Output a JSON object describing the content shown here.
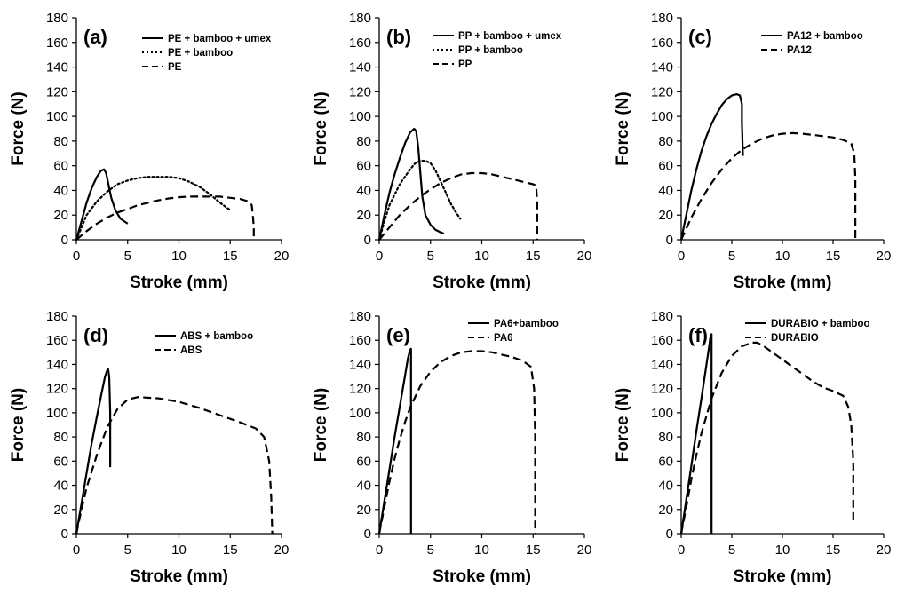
{
  "chart_data": [
    {
      "type": "line",
      "panel": "(a)",
      "xlabel": "Stroke (mm)",
      "ylabel": "Force (N)",
      "xlim": [
        0,
        20
      ],
      "ylim": [
        0,
        180
      ],
      "xticks": [
        0,
        5,
        10,
        15,
        20
      ],
      "yticks": [
        0,
        20,
        40,
        60,
        80,
        100,
        120,
        140,
        160,
        180
      ],
      "grid": false,
      "legend_position": "top-right",
      "series": [
        {
          "name": "PE + bamboo + umex",
          "style": "solid",
          "points": [
            [
              0,
              0
            ],
            [
              0.5,
              15
            ],
            [
              1,
              30
            ],
            [
              1.5,
              42
            ],
            [
              2,
              51
            ],
            [
              2.4,
              56
            ],
            [
              2.7,
              57
            ],
            [
              2.9,
              54
            ],
            [
              3.1,
              46
            ],
            [
              3.4,
              34
            ],
            [
              3.8,
              24
            ],
            [
              4.3,
              17
            ],
            [
              5,
              13
            ]
          ]
        },
        {
          "name": "PE + bamboo",
          "style": "dotted",
          "points": [
            [
              0,
              0
            ],
            [
              0.5,
              10
            ],
            [
              1,
              20
            ],
            [
              2,
              31
            ],
            [
              3,
              39
            ],
            [
              4,
              45
            ],
            [
              5,
              48
            ],
            [
              6,
              50
            ],
            [
              7,
              51
            ],
            [
              8,
              51
            ],
            [
              9,
              51
            ],
            [
              10,
              50
            ],
            [
              11,
              47
            ],
            [
              12,
              43
            ],
            [
              13,
              37
            ],
            [
              14,
              30
            ],
            [
              15,
              24
            ]
          ]
        },
        {
          "name": "PE",
          "style": "dashed",
          "points": [
            [
              0,
              0
            ],
            [
              1,
              7
            ],
            [
              2,
              13
            ],
            [
              3,
              18
            ],
            [
              4,
              22
            ],
            [
              5,
              25
            ],
            [
              6,
              28
            ],
            [
              7,
              30
            ],
            [
              8,
              32
            ],
            [
              9,
              33.5
            ],
            [
              10,
              34.5
            ],
            [
              11,
              35
            ],
            [
              12,
              35
            ],
            [
              13,
              35
            ],
            [
              14,
              35
            ],
            [
              15,
              34
            ],
            [
              16,
              33
            ],
            [
              16.8,
              31
            ],
            [
              17.1,
              28
            ],
            [
              17.2,
              20
            ],
            [
              17.3,
              10
            ],
            [
              17.3,
              0
            ]
          ]
        }
      ]
    },
    {
      "type": "line",
      "panel": "(b)",
      "xlabel": "Stroke (mm)",
      "ylabel": "Force (N)",
      "xlim": [
        0,
        20
      ],
      "ylim": [
        0,
        180
      ],
      "xticks": [
        0,
        5,
        10,
        15,
        20
      ],
      "yticks": [
        0,
        20,
        40,
        60,
        80,
        100,
        120,
        140,
        160,
        180
      ],
      "grid": false,
      "legend_position": "top-right",
      "series": [
        {
          "name": "PP + bamboo + umex",
          "style": "solid",
          "points": [
            [
              0,
              0
            ],
            [
              0.5,
              20
            ],
            [
              1,
              38
            ],
            [
              1.5,
              53
            ],
            [
              2,
              66
            ],
            [
              2.5,
              78
            ],
            [
              3,
              87
            ],
            [
              3.4,
              90
            ],
            [
              3.6,
              88
            ],
            [
              3.8,
              75
            ],
            [
              4,
              55
            ],
            [
              4.2,
              35
            ],
            [
              4.5,
              20
            ],
            [
              5,
              12
            ],
            [
              5.5,
              8
            ],
            [
              6,
              6
            ],
            [
              6.3,
              5
            ]
          ]
        },
        {
          "name": "PP + bamboo",
          "style": "dotted",
          "points": [
            [
              0,
              0
            ],
            [
              0.5,
              15
            ],
            [
              1,
              28
            ],
            [
              2,
              45
            ],
            [
              3,
              57
            ],
            [
              3.5,
              62
            ],
            [
              4,
              64
            ],
            [
              4.5,
              64
            ],
            [
              5,
              62
            ],
            [
              5.5,
              56
            ],
            [
              6,
              47
            ],
            [
              6.5,
              38
            ],
            [
              7,
              29
            ],
            [
              7.5,
              22
            ],
            [
              7.9,
              17
            ]
          ]
        },
        {
          "name": "PP",
          "style": "dashed",
          "points": [
            [
              0,
              0
            ],
            [
              1,
              10
            ],
            [
              2,
              20
            ],
            [
              3,
              28
            ],
            [
              4,
              35
            ],
            [
              5,
              41
            ],
            [
              6,
              46
            ],
            [
              7,
              50
            ],
            [
              8,
              53
            ],
            [
              9,
              54
            ],
            [
              10,
              54
            ],
            [
              11,
              53
            ],
            [
              12,
              51
            ],
            [
              13,
              49
            ],
            [
              14,
              47
            ],
            [
              15,
              45
            ],
            [
              15.3,
              44
            ],
            [
              15.4,
              30
            ],
            [
              15.4,
              0
            ]
          ]
        }
      ]
    },
    {
      "type": "line",
      "panel": "(c)",
      "xlabel": "Stroke (mm)",
      "ylabel": "Force (N)",
      "xlim": [
        0,
        20
      ],
      "ylim": [
        0,
        180
      ],
      "xticks": [
        0,
        5,
        10,
        15,
        20
      ],
      "yticks": [
        0,
        20,
        40,
        60,
        80,
        100,
        120,
        140,
        160,
        180
      ],
      "grid": false,
      "legend_position": "top-right",
      "series": [
        {
          "name": "PA12 + bamboo",
          "style": "solid",
          "points": [
            [
              0,
              0
            ],
            [
              0.5,
              20
            ],
            [
              1,
              40
            ],
            [
              1.5,
              57
            ],
            [
              2,
              72
            ],
            [
              2.5,
              84
            ],
            [
              3,
              94
            ],
            [
              3.5,
              102
            ],
            [
              4,
              109
            ],
            [
              4.5,
              114
            ],
            [
              5,
              117
            ],
            [
              5.5,
              118
            ],
            [
              5.8,
              117
            ],
            [
              6,
              110
            ],
            [
              6,
              95
            ],
            [
              6.1,
              68
            ]
          ]
        },
        {
          "name": "PA12",
          "style": "dashed",
          "points": [
            [
              0,
              0
            ],
            [
              1,
              18
            ],
            [
              2,
              33
            ],
            [
              3,
              46
            ],
            [
              4,
              57
            ],
            [
              5,
              66
            ],
            [
              6,
              73
            ],
            [
              7,
              78
            ],
            [
              8,
              82
            ],
            [
              9,
              84.5
            ],
            [
              10,
              86
            ],
            [
              11,
              86.5
            ],
            [
              12,
              86
            ],
            [
              13,
              85
            ],
            [
              14,
              84
            ],
            [
              15,
              83
            ],
            [
              16,
              81
            ],
            [
              16.8,
              78
            ],
            [
              17.1,
              70
            ],
            [
              17.2,
              50
            ],
            [
              17.2,
              0
            ]
          ]
        }
      ]
    },
    {
      "type": "line",
      "panel": "(d)",
      "xlabel": "Stroke (mm)",
      "ylabel": "Force (N)",
      "xlim": [
        0,
        20
      ],
      "ylim": [
        0,
        180
      ],
      "xticks": [
        0,
        5,
        10,
        15,
        20
      ],
      "yticks": [
        0,
        20,
        40,
        60,
        80,
        100,
        120,
        140,
        160,
        180
      ],
      "grid": false,
      "legend_position": "top-right",
      "series": [
        {
          "name": "ABS + bamboo",
          "style": "solid",
          "points": [
            [
              0,
              0
            ],
            [
              0.5,
              25
            ],
            [
              1,
              50
            ],
            [
              1.5,
              75
            ],
            [
              2,
              97
            ],
            [
              2.5,
              118
            ],
            [
              2.8,
              130
            ],
            [
              3,
              135
            ],
            [
              3.1,
              136
            ],
            [
              3.2,
              130
            ],
            [
              3.3,
              100
            ],
            [
              3.3,
              55
            ]
          ]
        },
        {
          "name": "ABS",
          "style": "dashed",
          "points": [
            [
              0,
              0
            ],
            [
              0.5,
              20
            ],
            [
              1,
              38
            ],
            [
              2,
              65
            ],
            [
              3,
              88
            ],
            [
              4,
              103
            ],
            [
              5,
              111
            ],
            [
              6,
              113
            ],
            [
              8,
              112
            ],
            [
              10,
              109
            ],
            [
              12,
              104
            ],
            [
              14,
              98
            ],
            [
              16,
              92
            ],
            [
              17.5,
              87
            ],
            [
              18.3,
              80
            ],
            [
              18.8,
              60
            ],
            [
              19,
              30
            ],
            [
              19.1,
              0
            ]
          ]
        }
      ]
    },
    {
      "type": "line",
      "panel": "(e)",
      "xlabel": "Stroke (mm)",
      "ylabel": "Force (N)",
      "xlim": [
        0,
        20
      ],
      "ylim": [
        0,
        180
      ],
      "xticks": [
        0,
        5,
        10,
        15,
        20
      ],
      "yticks": [
        0,
        20,
        40,
        60,
        80,
        100,
        120,
        140,
        160,
        180
      ],
      "grid": false,
      "legend_position": "top-right",
      "series": [
        {
          "name": "PA6+bamboo",
          "style": "solid",
          "points": [
            [
              0,
              0
            ],
            [
              0.5,
              27
            ],
            [
              1,
              53
            ],
            [
              1.5,
              80
            ],
            [
              2,
              105
            ],
            [
              2.5,
              130
            ],
            [
              2.8,
              145
            ],
            [
              3,
              152
            ],
            [
              3.1,
              153
            ],
            [
              3.1,
              0
            ]
          ]
        },
        {
          "name": "PA6",
          "style": "dashed",
          "points": [
            [
              0,
              0
            ],
            [
              0.5,
              22
            ],
            [
              1,
              43
            ],
            [
              1.5,
              62
            ],
            [
              2,
              78
            ],
            [
              2.5,
              92
            ],
            [
              3,
              104
            ],
            [
              4,
              122
            ],
            [
              5,
              134
            ],
            [
              6,
              142
            ],
            [
              7,
              147
            ],
            [
              8,
              150
            ],
            [
              9,
              151
            ],
            [
              10,
              151
            ],
            [
              11,
              150
            ],
            [
              12,
              148
            ],
            [
              13,
              146
            ],
            [
              14,
              143
            ],
            [
              14.8,
              138
            ],
            [
              15.1,
              120
            ],
            [
              15.2,
              80
            ],
            [
              15.2,
              0
            ]
          ]
        }
      ]
    },
    {
      "type": "line",
      "panel": "(f)",
      "xlabel": "Stroke (mm)",
      "ylabel": "Force (N)",
      "xlim": [
        0,
        20
      ],
      "ylim": [
        0,
        180
      ],
      "xticks": [
        0,
        5,
        10,
        15,
        20
      ],
      "yticks": [
        0,
        20,
        40,
        60,
        80,
        100,
        120,
        140,
        160,
        180
      ],
      "grid": false,
      "legend_position": "top-right",
      "series": [
        {
          "name": "DURABIO + bamboo",
          "style": "solid",
          "points": [
            [
              0,
              0
            ],
            [
              0.5,
              28
            ],
            [
              1,
              56
            ],
            [
              1.5,
              85
            ],
            [
              2,
              112
            ],
            [
              2.5,
              140
            ],
            [
              2.8,
              157
            ],
            [
              2.9,
              164
            ],
            [
              3,
              165
            ],
            [
              3,
              0
            ]
          ]
        },
        {
          "name": "DURABIO",
          "style": "dashed",
          "points": [
            [
              0,
              0
            ],
            [
              0.5,
              22
            ],
            [
              1,
              45
            ],
            [
              1.5,
              65
            ],
            [
              2,
              83
            ],
            [
              3,
              112
            ],
            [
              4,
              133
            ],
            [
              5,
              147
            ],
            [
              6,
              155
            ],
            [
              7,
              158
            ],
            [
              7.5,
              158
            ],
            [
              8,
              156
            ],
            [
              9,
              150
            ],
            [
              10,
              144
            ],
            [
              11,
              138
            ],
            [
              12,
              132
            ],
            [
              13,
              126
            ],
            [
              14,
              121
            ],
            [
              15,
              118
            ],
            [
              16,
              114
            ],
            [
              16.5,
              105
            ],
            [
              16.8,
              90
            ],
            [
              17,
              60
            ],
            [
              17,
              8
            ]
          ]
        }
      ]
    }
  ]
}
